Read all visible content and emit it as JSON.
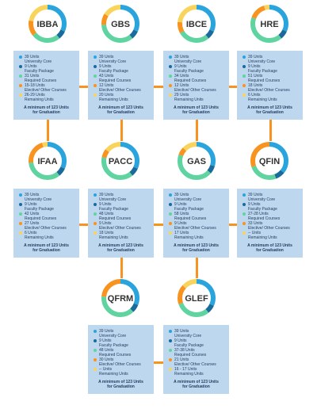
{
  "colors": {
    "university_core": "#2aa4dc",
    "faculty_package": "#1a6a9a",
    "required": "#5fd4a0",
    "elective": "#f7931e",
    "remaining": "#f9d45c",
    "card_bg": "#bdd7ee",
    "connector": "#f7931e"
  },
  "legend_labels": {
    "university_core": "University Core",
    "faculty_package": "Faculty Package",
    "required": "Required Courses",
    "elective": "Elective/ Other Courses",
    "remaining": "Remaining Units"
  },
  "footer_line1": "A minimum of 123 Units",
  "footer_line2": "for Graduation",
  "programs": [
    {
      "name": "IBBA",
      "core": "39 Units",
      "faculty": "9 Units",
      "required": "31 Units",
      "elective": "15-18 Units",
      "remaining": "26-29 Units",
      "segments": {
        "university_core": 39,
        "faculty_package": 9,
        "required": 31,
        "elective": 16.5,
        "remaining": 27.5
      }
    },
    {
      "name": "GBS",
      "core": "39 Units",
      "faculty": "9 Units",
      "required": "43 Units",
      "elective": "12 Units",
      "remaining": "20 Units",
      "segments": {
        "university_core": 39,
        "faculty_package": 9,
        "required": 43,
        "elective": 12,
        "remaining": 20
      }
    },
    {
      "name": "IBCE",
      "core": "39 Units",
      "faculty": "9 Units",
      "required": "34 Units",
      "elective": "12 Units",
      "remaining": "29 Units",
      "segments": {
        "university_core": 39,
        "faculty_package": 9,
        "required": 34,
        "elective": 12,
        "remaining": 29
      }
    },
    {
      "name": "HRE",
      "core": "39 Units",
      "faculty": "9 Units",
      "required": "51 Units",
      "elective": "18 Units",
      "remaining": "6 Units",
      "segments": {
        "university_core": 39,
        "faculty_package": 9,
        "required": 51,
        "elective": 18,
        "remaining": 6
      }
    },
    {
      "name": "IFAA",
      "core": "39 Units",
      "faculty": "9 Units",
      "required": "42 Units",
      "elective": "27 Units",
      "remaining": "6 Units",
      "segments": {
        "university_core": 39,
        "faculty_package": 9,
        "required": 42,
        "elective": 27,
        "remaining": 6
      }
    },
    {
      "name": "PACC",
      "core": "39 Units",
      "faculty": "9 Units",
      "required": "48 Units",
      "elective": "9 Units",
      "remaining": "18 Units",
      "segments": {
        "university_core": 39,
        "faculty_package": 9,
        "required": 48,
        "elective": 9,
        "remaining": 18
      }
    },
    {
      "name": "GAS",
      "core": "39 Units",
      "faculty": "9 Units",
      "required": "58 Units",
      "elective": "9 Units",
      "remaining": "17 Units",
      "segments": {
        "university_core": 39,
        "faculty_package": 9,
        "required": 58,
        "elective": 9,
        "remaining": 17
      }
    },
    {
      "name": "QFIN",
      "core": "39 Units",
      "faculty": "9 Units",
      "required": "27-28 Units",
      "elective": "33 Units",
      "remaining": "-- Units",
      "segments": {
        "university_core": 39,
        "faculty_package": 9,
        "required": 27.5,
        "elective": 33,
        "remaining": 0
      }
    },
    {
      "name": "QFRM",
      "core": "39 Units",
      "faculty": "9 Units",
      "required": "48 Units",
      "elective": "30 Units",
      "remaining": "-- Units",
      "segments": {
        "university_core": 39,
        "faculty_package": 9,
        "required": 48,
        "elective": 30,
        "remaining": 0
      }
    },
    {
      "name": "GLEF",
      "core": "39 Units",
      "faculty": "9 Units",
      "required": "37-38 Units",
      "elective": "21 Units",
      "remaining": "16 - 17 Units",
      "segments": {
        "university_core": 39,
        "faculty_package": 9,
        "required": 37.5,
        "elective": 21,
        "remaining": 16.5
      }
    }
  ]
}
